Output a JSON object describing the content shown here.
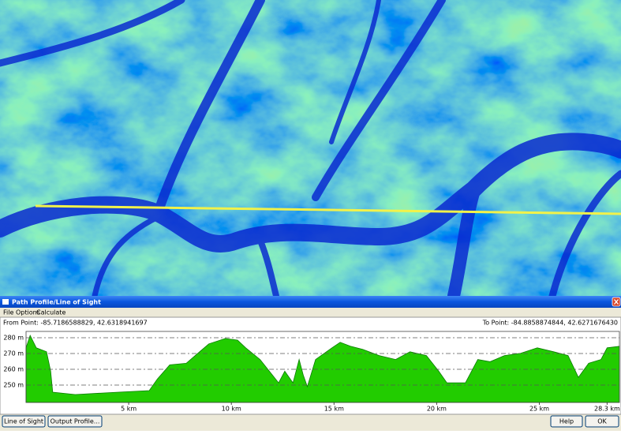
{
  "window": {
    "title": "Path Profile/Line of Sight",
    "menu": [
      "File",
      "Options",
      "Calculate"
    ],
    "from_point": "From Point: -85.7186588829, 42.6318941697",
    "to_point": "To Point: -84.8858874844, 42.6271676430",
    "buttons": [
      "Line of Sight",
      "Output Profile...",
      "Help",
      "OK"
    ]
  },
  "chart_data": {
    "type": "area",
    "color": "#22cc00",
    "x": [
      0,
      0.2,
      0.5,
      1.0,
      1.2,
      1.3,
      2.4,
      4.5,
      6.0,
      6.4,
      7.0,
      7.8,
      8.9,
      9.7,
      10.3,
      10.7,
      11.4,
      12.0,
      12.3,
      12.6,
      13.0,
      13.3,
      13.5,
      13.7,
      14.1,
      14.9,
      15.3,
      15.8,
      16.4,
      17.2,
      18.0,
      18.7,
      19.5,
      20.1,
      20.5,
      21.4,
      22.0,
      22.6,
      23.3,
      24.1,
      24.9,
      25.7,
      26.4,
      26.9,
      27.4,
      28.0,
      28.3,
      28.9
    ],
    "values": [
      273.6,
      281.5,
      273.6,
      271.1,
      258.8,
      245.5,
      244.0,
      245.5,
      246.5,
      253.9,
      262.8,
      263.8,
      276.1,
      279.5,
      278.5,
      273.6,
      266.2,
      256.4,
      251.4,
      258.8,
      251.4,
      266.2,
      256.4,
      249.0,
      266.2,
      273.6,
      277.1,
      274.6,
      272.6,
      268.7,
      266.2,
      271.1,
      268.7,
      258.8,
      251.4,
      251.4,
      266.2,
      264.8,
      268.7,
      270.2,
      273.6,
      271.1,
      268.7,
      254.9,
      263.8,
      266.2,
      273.6,
      274.6
    ],
    "xlim": [
      0,
      28.9
    ],
    "ylim": [
      239,
      284
    ],
    "xticks": [
      {
        "value": 5,
        "label": "5 km"
      },
      {
        "value": 10,
        "label": "10 km"
      },
      {
        "value": 15,
        "label": "15 km"
      },
      {
        "value": 20,
        "label": "20 km"
      },
      {
        "value": 25,
        "label": "25 km"
      },
      {
        "value": 28.3,
        "label": "28.3 km"
      }
    ],
    "yticks": [
      {
        "value": 250,
        "label": "250 m"
      },
      {
        "value": 260,
        "label": "260 m"
      },
      {
        "value": 270,
        "label": "270 m"
      },
      {
        "value": 280,
        "label": "280 m"
      }
    ],
    "grid": true
  }
}
